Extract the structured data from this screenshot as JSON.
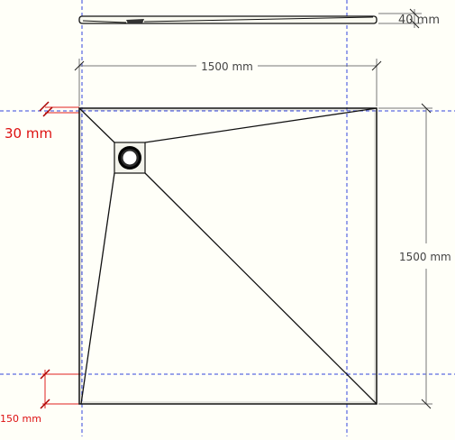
{
  "drawing": {
    "top_view_width_label": "1500 mm",
    "top_view_height_label": "1500 mm",
    "side_thickness_label": "40 mm",
    "edge_margin_top_label": "30 mm",
    "edge_margin_bottom_label": "150 mm"
  },
  "colors": {
    "background": "#fffff8",
    "outline": "#111111",
    "dimension_line": "#777777",
    "guide_line": "#3344dd",
    "margin_marker": "#e02020",
    "margin_label": "#dd1111",
    "dimension_label": "#444444",
    "drain": "#000000"
  }
}
